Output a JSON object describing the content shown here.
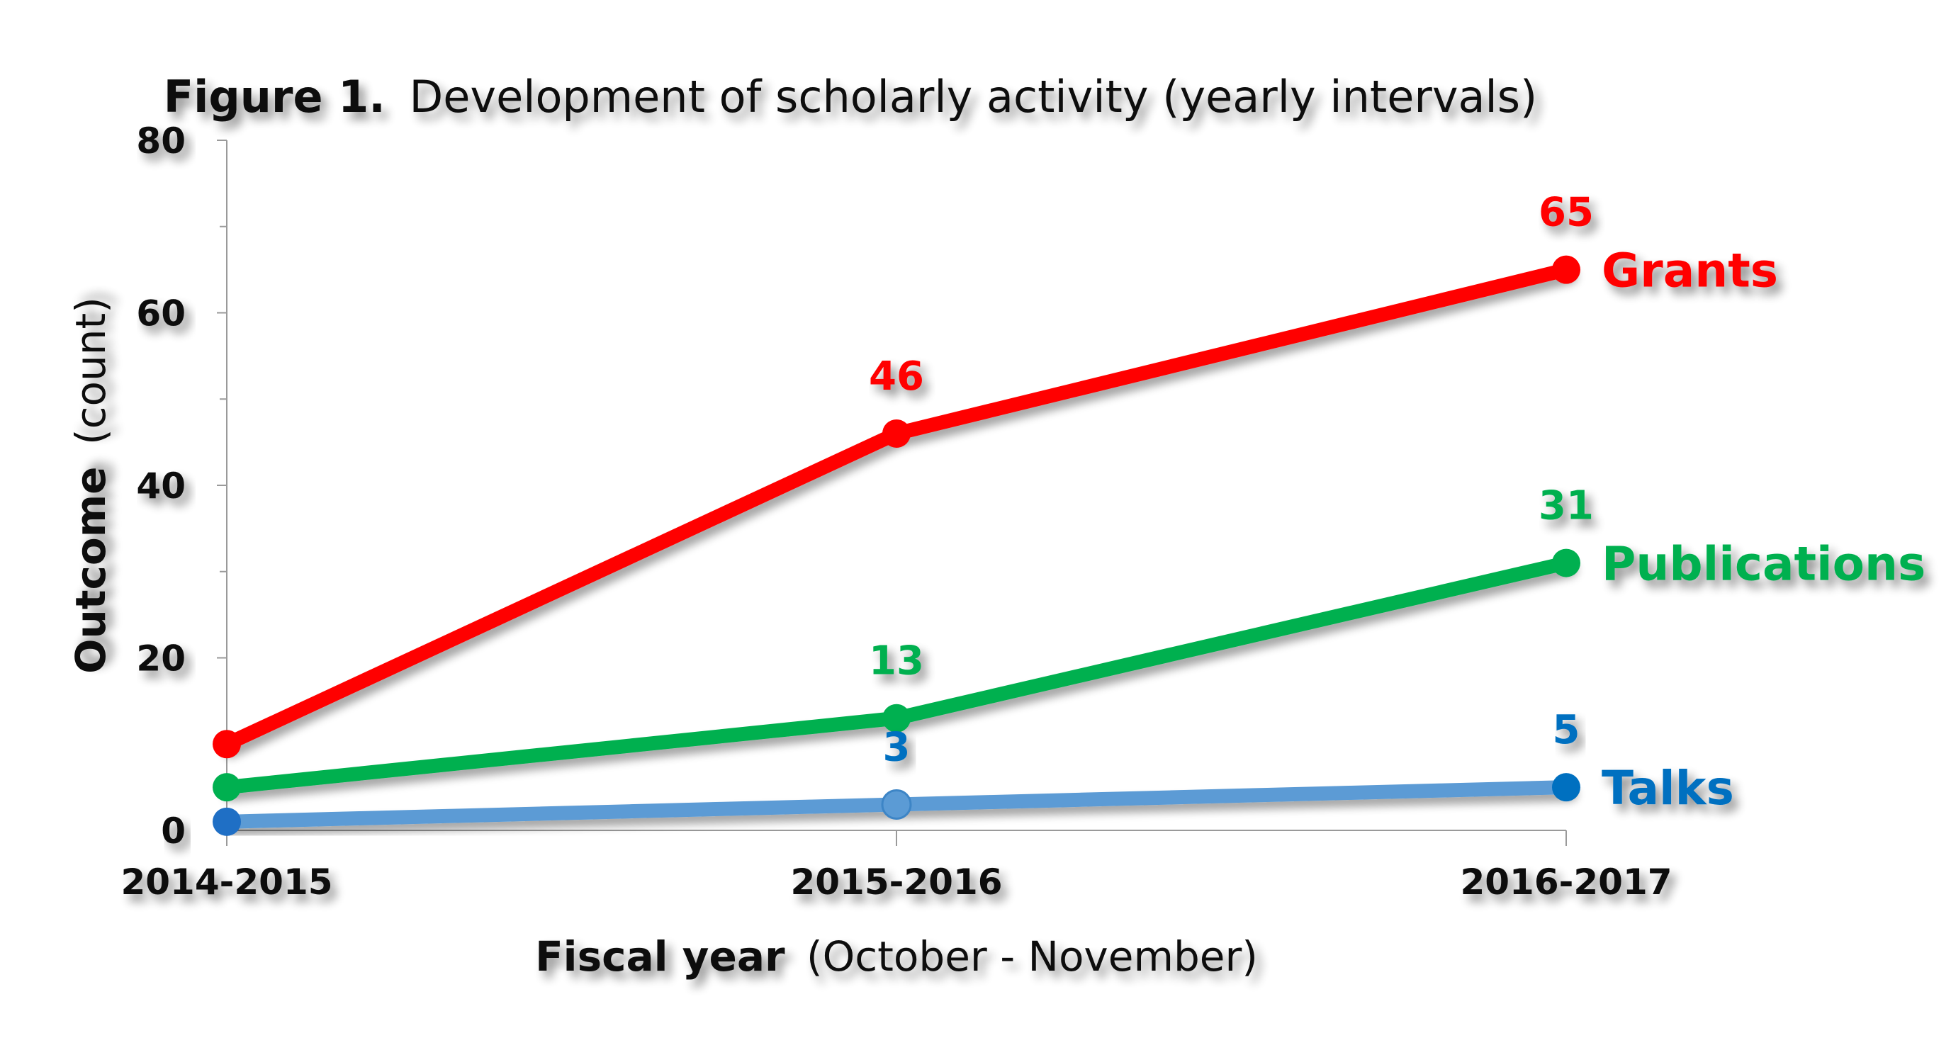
{
  "title": {
    "bold": "Figure 1.",
    "text": "Development of scholarly activity (yearly intervals)"
  },
  "chart_data": {
    "type": "line",
    "categories": [
      "2014-2015",
      "2015-2016",
      "2016-2017"
    ],
    "ylim": [
      0,
      80
    ],
    "y_ticks": [
      "0",
      "20",
      "40",
      "60",
      "80"
    ],
    "grid": false,
    "xlabel": {
      "bold": "Fiscal year",
      "text": "(October - November)"
    },
    "ylabel": {
      "bold": "Outcome",
      "text": "(count)"
    },
    "legend": "inline-right",
    "series": [
      {
        "name": "Grants",
        "values": [
          10,
          46,
          65
        ],
        "labels": [
          "",
          "46",
          "65"
        ],
        "color": "#ff0000",
        "label_color": "#ff0000"
      },
      {
        "name": "Publications",
        "values": [
          5,
          13,
          31
        ],
        "labels": [
          "",
          "13",
          "31"
        ],
        "color": "#00b050",
        "label_color": "#00b050"
      },
      {
        "name": "Talks",
        "values": [
          1,
          3,
          5
        ],
        "labels": [
          "",
          "3",
          "5"
        ],
        "color": "#5b9bd5",
        "label_color": "#0070c0"
      }
    ]
  }
}
